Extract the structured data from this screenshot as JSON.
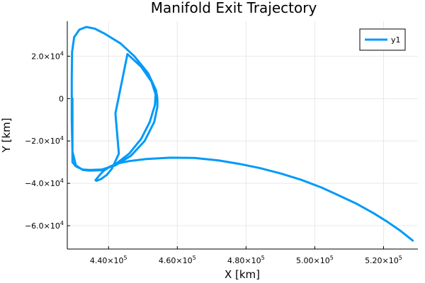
{
  "chart_data": {
    "type": "line",
    "title": "Manifold Exit Trajectory",
    "xlabel": "X [km]",
    "ylabel": "Y [km]",
    "xlim": [
      428000,
      530000
    ],
    "ylim": [
      -71000,
      36500
    ],
    "grid": true,
    "legend_position": "top-right",
    "x_ticks": [
      {
        "value": 440000,
        "mantissa": "4.40×10",
        "exp": "5"
      },
      {
        "value": 460000,
        "mantissa": "4.60×10",
        "exp": "5"
      },
      {
        "value": 480000,
        "mantissa": "4.80×10",
        "exp": "5"
      },
      {
        "value": 500000,
        "mantissa": "5.00×10",
        "exp": "5"
      },
      {
        "value": 520000,
        "mantissa": "5.20×10",
        "exp": "5"
      }
    ],
    "y_ticks": [
      {
        "value": 20000,
        "mantissa": "2.0×10",
        "exp": "4"
      },
      {
        "value": 0,
        "mantissa": "0",
        "exp": ""
      },
      {
        "value": -20000,
        "mantissa": "−2.0×10",
        "exp": "4"
      },
      {
        "value": -40000,
        "mantissa": "−4.0×10",
        "exp": "4"
      },
      {
        "value": -60000,
        "mantissa": "−6.0×10",
        "exp": "4"
      }
    ],
    "series": [
      {
        "name": "y1",
        "color": "#009af9",
        "points": [
          [
            429500,
            0
          ],
          [
            429500,
            -30000
          ],
          [
            430500,
            -32000
          ],
          [
            432500,
            -33500
          ],
          [
            434500,
            -33700
          ],
          [
            438000,
            -33500
          ],
          [
            442000,
            -31500
          ],
          [
            446500,
            -27000
          ],
          [
            450500,
            -20000
          ],
          [
            453300,
            -11000
          ],
          [
            454200,
            -4000
          ],
          [
            454200,
            0
          ],
          [
            453800,
            4000
          ],
          [
            451500,
            12000
          ],
          [
            447500,
            20000
          ],
          [
            443500,
            26000
          ],
          [
            439000,
            30500
          ],
          [
            436000,
            33000
          ],
          [
            433500,
            33800
          ],
          [
            431500,
            32500
          ],
          [
            430000,
            29000
          ],
          [
            429400,
            22000
          ],
          [
            429300,
            10000
          ],
          [
            429300,
            0
          ],
          [
            429300,
            -10000
          ],
          [
            429500,
            -25000
          ],
          [
            430500,
            -31500
          ],
          [
            432500,
            -33700
          ],
          [
            434500,
            -34000
          ],
          [
            438000,
            -33800
          ],
          [
            442000,
            -31000
          ],
          [
            446000,
            -26000
          ],
          [
            449500,
            -19000
          ],
          [
            452000,
            -11000
          ],
          [
            453500,
            -3000
          ],
          [
            453700,
            2000
          ],
          [
            452500,
            8000
          ],
          [
            449500,
            15000
          ],
          [
            445500,
            21000
          ],
          [
            442000,
            -7000
          ],
          [
            443000,
            -26000
          ],
          [
            441000,
            -33000
          ],
          [
            439500,
            -36000
          ],
          [
            437800,
            -38000
          ],
          [
            436500,
            -38800
          ],
          [
            436200,
            -38500
          ],
          [
            437200,
            -36500
          ],
          [
            438500,
            -34200
          ],
          [
            440500,
            -32000
          ],
          [
            443000,
            -30500
          ],
          [
            446000,
            -29500
          ],
          [
            451000,
            -28500
          ],
          [
            458000,
            -27900
          ],
          [
            465000,
            -28000
          ],
          [
            472000,
            -29200
          ],
          [
            478000,
            -30800
          ],
          [
            484000,
            -32800
          ],
          [
            490000,
            -35300
          ],
          [
            496000,
            -38300
          ],
          [
            502000,
            -42000
          ],
          [
            507000,
            -45700
          ],
          [
            512000,
            -49500
          ],
          [
            517000,
            -54000
          ],
          [
            521000,
            -58000
          ],
          [
            525000,
            -62500
          ],
          [
            528500,
            -67000
          ]
        ]
      }
    ]
  }
}
